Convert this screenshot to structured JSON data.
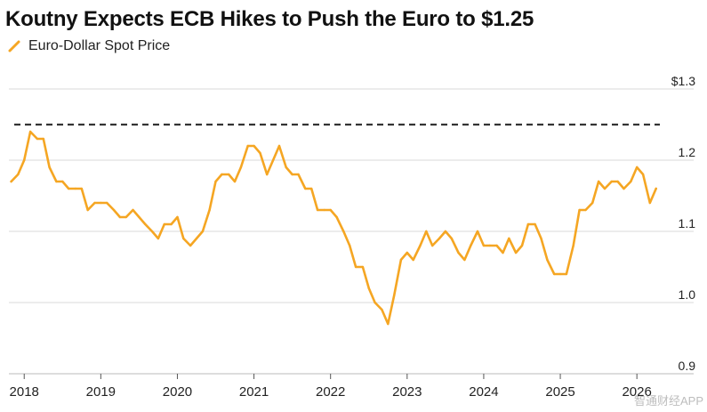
{
  "chart_data": {
    "type": "line",
    "title": "Koutny Expects ECB Hikes to Push the Euro to $1.25",
    "legend": "Euro-Dollar Spot Price",
    "series": [
      {
        "name": "Euro-Dollar Spot Price",
        "color": "#F5A623",
        "points": [
          [
            2017.83,
            1.17
          ],
          [
            2017.92,
            1.18
          ],
          [
            2018.0,
            1.2
          ],
          [
            2018.08,
            1.24
          ],
          [
            2018.17,
            1.23
          ],
          [
            2018.25,
            1.23
          ],
          [
            2018.33,
            1.19
          ],
          [
            2018.42,
            1.17
          ],
          [
            2018.5,
            1.17
          ],
          [
            2018.58,
            1.16
          ],
          [
            2018.67,
            1.16
          ],
          [
            2018.75,
            1.16
          ],
          [
            2018.83,
            1.13
          ],
          [
            2018.92,
            1.14
          ],
          [
            2019.0,
            1.14
          ],
          [
            2019.08,
            1.14
          ],
          [
            2019.17,
            1.13
          ],
          [
            2019.25,
            1.12
          ],
          [
            2019.33,
            1.12
          ],
          [
            2019.42,
            1.13
          ],
          [
            2019.5,
            1.12
          ],
          [
            2019.58,
            1.11
          ],
          [
            2019.67,
            1.1
          ],
          [
            2019.75,
            1.09
          ],
          [
            2019.83,
            1.11
          ],
          [
            2019.92,
            1.11
          ],
          [
            2020.0,
            1.12
          ],
          [
            2020.08,
            1.09
          ],
          [
            2020.17,
            1.08
          ],
          [
            2020.25,
            1.09
          ],
          [
            2020.33,
            1.1
          ],
          [
            2020.42,
            1.13
          ],
          [
            2020.5,
            1.17
          ],
          [
            2020.58,
            1.18
          ],
          [
            2020.67,
            1.18
          ],
          [
            2020.75,
            1.17
          ],
          [
            2020.83,
            1.19
          ],
          [
            2020.92,
            1.22
          ],
          [
            2021.0,
            1.22
          ],
          [
            2021.08,
            1.21
          ],
          [
            2021.17,
            1.18
          ],
          [
            2021.25,
            1.2
          ],
          [
            2021.33,
            1.22
          ],
          [
            2021.42,
            1.19
          ],
          [
            2021.5,
            1.18
          ],
          [
            2021.58,
            1.18
          ],
          [
            2021.67,
            1.16
          ],
          [
            2021.75,
            1.16
          ],
          [
            2021.83,
            1.13
          ],
          [
            2021.92,
            1.13
          ],
          [
            2022.0,
            1.13
          ],
          [
            2022.08,
            1.12
          ],
          [
            2022.17,
            1.1
          ],
          [
            2022.25,
            1.08
          ],
          [
            2022.33,
            1.05
          ],
          [
            2022.42,
            1.05
          ],
          [
            2022.5,
            1.02
          ],
          [
            2022.58,
            1.0
          ],
          [
            2022.67,
            0.99
          ],
          [
            2022.75,
            0.97
          ],
          [
            2022.83,
            1.01
          ],
          [
            2022.92,
            1.06
          ],
          [
            2023.0,
            1.07
          ],
          [
            2023.08,
            1.06
          ],
          [
            2023.17,
            1.08
          ],
          [
            2023.25,
            1.1
          ],
          [
            2023.33,
            1.08
          ],
          [
            2023.42,
            1.09
          ],
          [
            2023.5,
            1.1
          ],
          [
            2023.58,
            1.09
          ],
          [
            2023.67,
            1.07
          ],
          [
            2023.75,
            1.06
          ],
          [
            2023.83,
            1.08
          ],
          [
            2023.92,
            1.1
          ],
          [
            2024.0,
            1.08
          ],
          [
            2024.08,
            1.08
          ],
          [
            2024.17,
            1.08
          ],
          [
            2024.25,
            1.07
          ],
          [
            2024.33,
            1.09
          ],
          [
            2024.42,
            1.07
          ],
          [
            2024.5,
            1.08
          ],
          [
            2024.58,
            1.11
          ],
          [
            2024.67,
            1.11
          ],
          [
            2024.75,
            1.09
          ],
          [
            2024.83,
            1.06
          ],
          [
            2024.92,
            1.04
          ],
          [
            2025.0,
            1.04
          ],
          [
            2025.08,
            1.04
          ],
          [
            2025.17,
            1.08
          ],
          [
            2025.25,
            1.13
          ],
          [
            2025.33,
            1.13
          ],
          [
            2025.42,
            1.14
          ],
          [
            2025.5,
            1.17
          ],
          [
            2025.58,
            1.16
          ],
          [
            2025.67,
            1.17
          ],
          [
            2025.75,
            1.17
          ],
          [
            2025.83,
            1.16
          ],
          [
            2025.92,
            1.17
          ],
          [
            2026.0,
            1.19
          ],
          [
            2026.08,
            1.18
          ],
          [
            2026.17,
            1.14
          ],
          [
            2026.25,
            1.16
          ]
        ]
      }
    ],
    "reference_line": {
      "y": 1.25,
      "style": "dashed",
      "color": "#333333"
    },
    "y_ticks": [
      {
        "value": 1.3,
        "label": "$1.3"
      },
      {
        "value": 1.2,
        "label": "1.2"
      },
      {
        "value": 1.1,
        "label": "1.1"
      },
      {
        "value": 1.0,
        "label": "1.0"
      },
      {
        "value": 0.9,
        "label": "0.9"
      }
    ],
    "x_ticks": [
      {
        "value": 2018,
        "label": "2018"
      },
      {
        "value": 2019,
        "label": "2019"
      },
      {
        "value": 2020,
        "label": "2020"
      },
      {
        "value": 2021,
        "label": "2021"
      },
      {
        "value": 2022,
        "label": "2022"
      },
      {
        "value": 2023,
        "label": "2023"
      },
      {
        "value": 2024,
        "label": "2024"
      },
      {
        "value": 2025,
        "label": "2025"
      },
      {
        "value": 2026,
        "label": "2026"
      }
    ],
    "xlim": [
      2017.8,
      2026.3
    ],
    "ylim": [
      0.9,
      1.3
    ],
    "grid": true,
    "y_axis_side": "right",
    "xlabel": "",
    "ylabel": ""
  },
  "watermark": "智通财经APP"
}
